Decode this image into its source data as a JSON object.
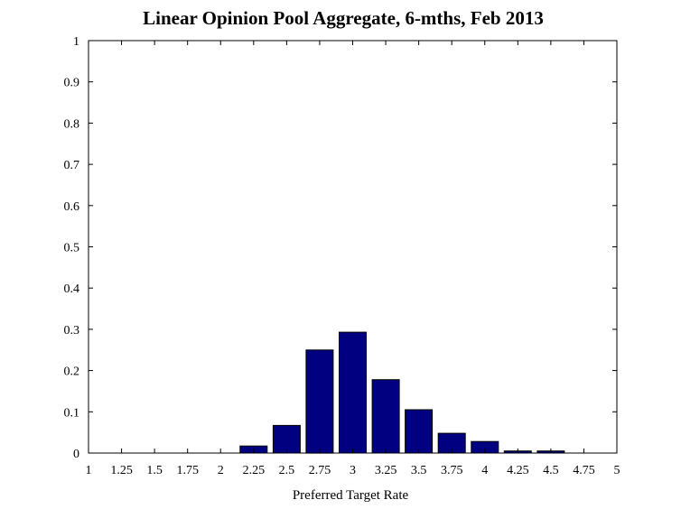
{
  "chart_data": {
    "type": "bar",
    "title": "Linear Opinion Pool Aggregate, 6-mths, Feb 2013",
    "xlabel": "Preferred Target Rate",
    "ylabel": "",
    "xlim": [
      1,
      5
    ],
    "ylim": [
      0,
      1
    ],
    "grid": false,
    "x_ticks": [
      "1",
      "1.25",
      "1.5",
      "1.75",
      "2",
      "2.25",
      "2.5",
      "2.75",
      "3",
      "3.25",
      "3.5",
      "3.75",
      "4",
      "4.25",
      "4.5",
      "4.75",
      "5"
    ],
    "y_ticks": [
      "0",
      "0.1",
      "0.2",
      "0.3",
      "0.4",
      "0.5",
      "0.6",
      "0.7",
      "0.8",
      "0.9",
      "1"
    ],
    "series": [
      {
        "x": [
          2.25,
          2.5,
          2.75,
          3,
          3.25,
          3.5,
          3.75,
          4,
          4.25,
          4.5
        ],
        "values": [
          0.017,
          0.067,
          0.25,
          0.293,
          0.178,
          0.105,
          0.048,
          0.028,
          0.005,
          0.005
        ]
      }
    ],
    "colors": {
      "bar_fill": "#000080",
      "bar_stroke": "#000000"
    }
  }
}
